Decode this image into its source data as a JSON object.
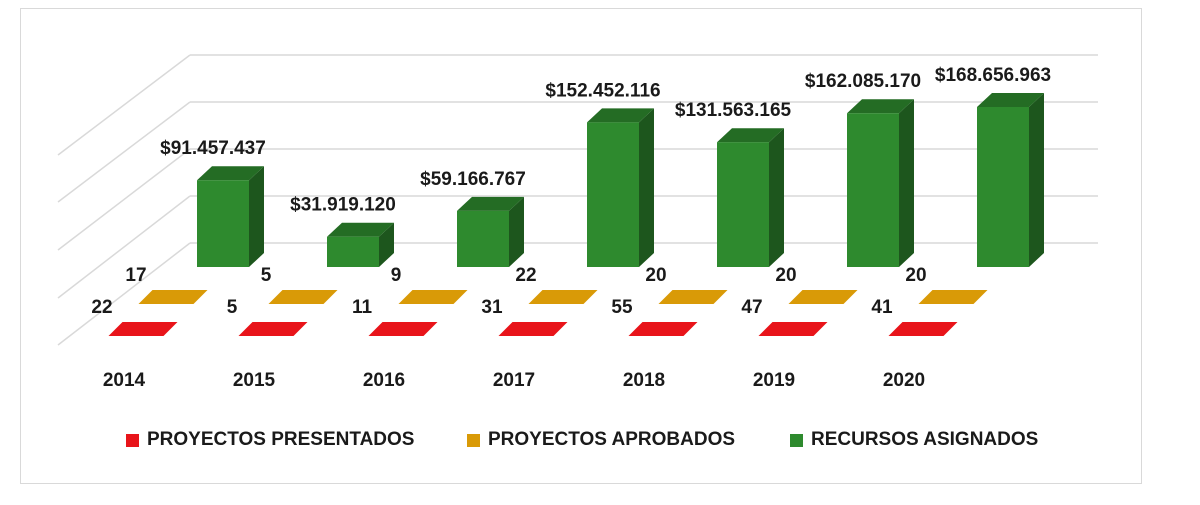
{
  "chart_data": {
    "type": "bar",
    "categories": [
      "2014",
      "2015",
      "2016",
      "2017",
      "2018",
      "2019",
      "2020"
    ],
    "series": [
      {
        "name": "PROYECTOS PRESENTADOS",
        "values": [
          22,
          5,
          11,
          31,
          55,
          47,
          41
        ],
        "labels": [
          "22",
          "5",
          "11",
          "31",
          "55",
          "47",
          "41"
        ],
        "color": "#e8141a"
      },
      {
        "name": "PROYECTOS APROBADOS",
        "values": [
          17,
          5,
          9,
          22,
          20,
          20,
          20
        ],
        "labels": [
          "17",
          "5",
          "9",
          "22",
          "20",
          "20",
          "20"
        ],
        "color": "#d99a07"
      },
      {
        "name": "RECURSOS ASIGNADOS",
        "values": [
          91457437,
          31919120,
          59166767,
          152452116,
          131563165,
          162085170,
          168656963
        ],
        "labels": [
          "$91.457.437",
          "$31.919.120",
          "$59.166.767",
          "$152.452.116",
          "$131.563.165",
          "$162.085.170",
          "$168.656.963"
        ],
        "color": "#2e8a2e"
      }
    ],
    "grid": true,
    "legend_position": "bottom",
    "style": "3d-column"
  }
}
